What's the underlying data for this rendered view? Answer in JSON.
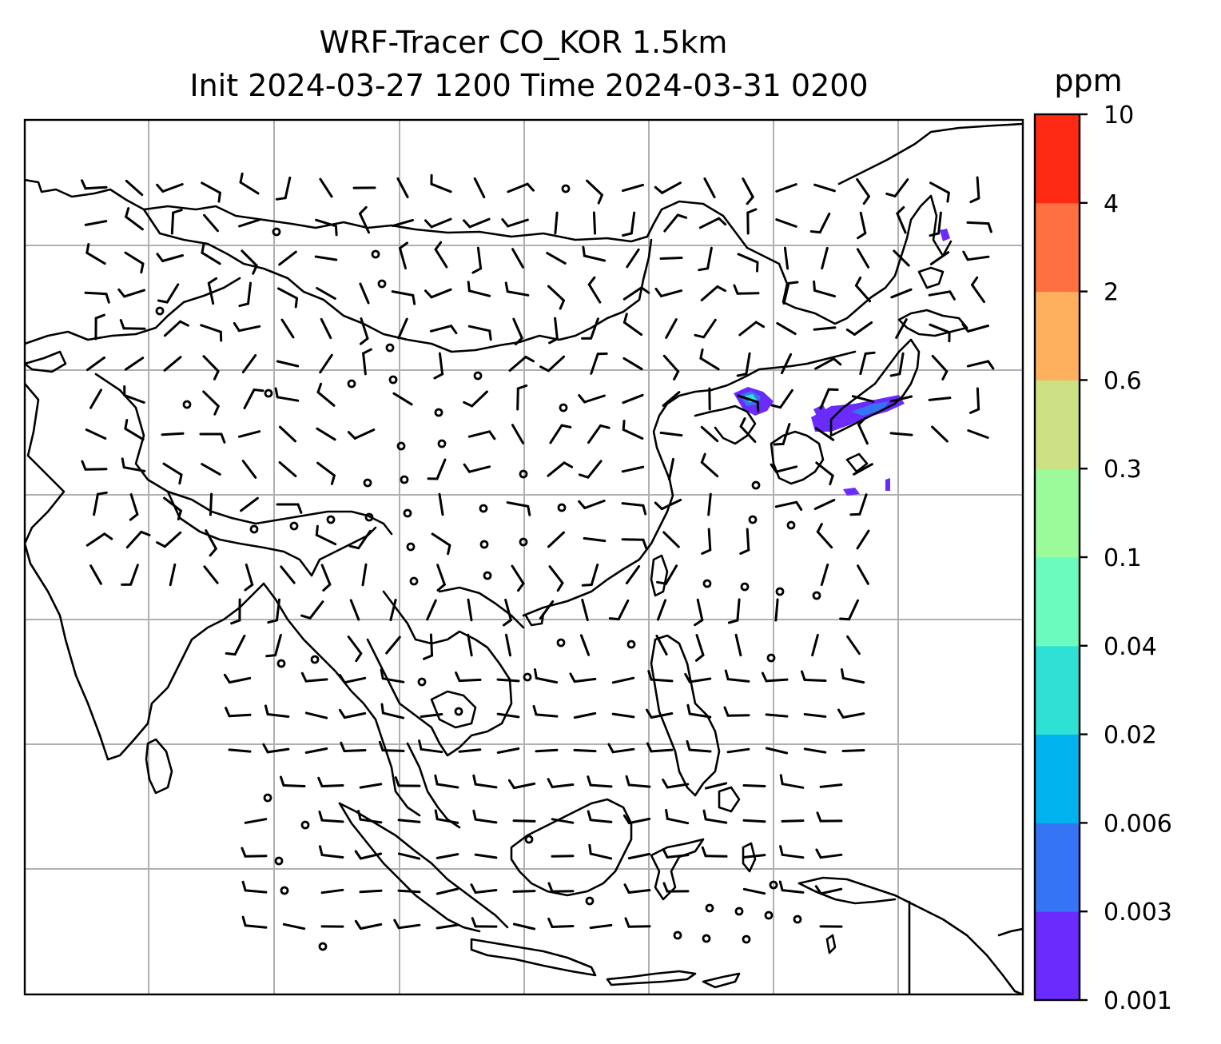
{
  "title": {
    "line1": "WRF-Tracer CO_KOR 1.5km",
    "line2": "Init 2024-03-27 1200 Time 2024-03-31 0200"
  },
  "colorbar": {
    "title": "ppm",
    "levels": [
      "0.001",
      "0.003",
      "0.006",
      "0.02",
      "0.04",
      "0.1",
      "0.3",
      "0.6",
      "2",
      "4",
      "10"
    ],
    "colors": [
      "#6a2bfc",
      "#3575f5",
      "#00b2ee",
      "#2fe0d4",
      "#6afbbe",
      "#9bfa9a",
      "#cde184",
      "#ffb05e",
      "#ff7040",
      "#ff2a14"
    ]
  },
  "map": {
    "gridlines": true,
    "coastline_color": "#000000",
    "gridline_color": "#b0b0b0"
  }
}
